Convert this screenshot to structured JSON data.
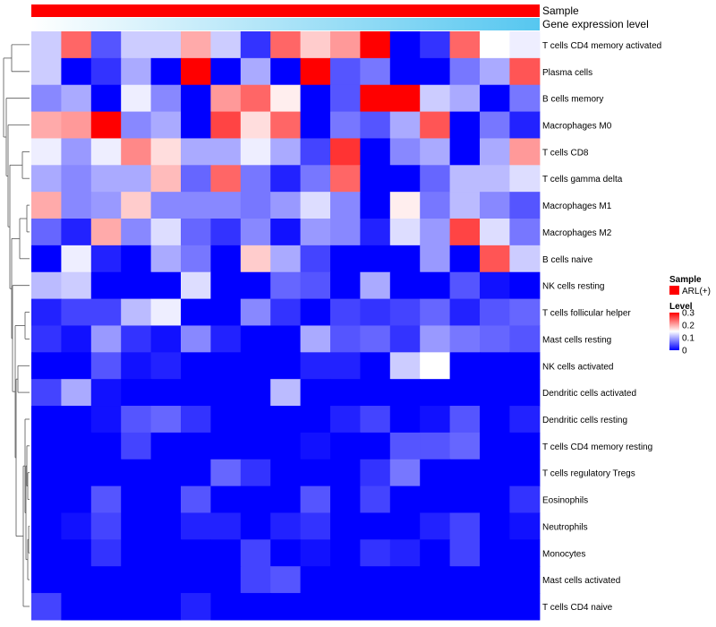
{
  "chart_data": {
    "type": "heatmap",
    "title": "",
    "annotation_rows": [
      {
        "label": "Sample",
        "color": "#ff0000"
      },
      {
        "label": "Gene expression level",
        "gradient": [
          "#ffffff",
          "#56c7f0"
        ]
      }
    ],
    "columns": 17,
    "rows": [
      "T cells CD4 memory activated",
      "Plasma cells",
      "B cells memory",
      "Macrophages M0",
      "T cells CD8",
      "T cells gamma delta",
      "Macrophages M1",
      "Macrophages M2",
      "B cells naive",
      "NK cells resting",
      "T cells follicular helper",
      "Mast cells resting",
      "NK cells activated",
      "Dendritic cells activated",
      "Dendritic cells resting",
      "T cells CD4 memory resting",
      "T cells regulatory  Tregs",
      "Eosinophils",
      "Neutrophils",
      "Monocytes",
      "Mast cells activated",
      "T cells CD4 naive"
    ],
    "values": [
      [
        0.12,
        0.24,
        0.05,
        0.12,
        0.12,
        0.2,
        0.12,
        0.03,
        0.24,
        0.18,
        0.21,
        0.3,
        0.0,
        0.03,
        0.24,
        0.15,
        0.14
      ],
      [
        0.12,
        0.0,
        0.03,
        0.1,
        0.0,
        0.3,
        0.0,
        0.1,
        0.0,
        0.3,
        0.05,
        0.07,
        0.0,
        0.0,
        0.07,
        0.1,
        0.25
      ],
      [
        0.08,
        0.1,
        0.0,
        0.14,
        0.08,
        0.0,
        0.21,
        0.24,
        0.16,
        0.0,
        0.05,
        0.3,
        0.3,
        0.12,
        0.1,
        0.0,
        0.07
      ],
      [
        0.2,
        0.21,
        0.3,
        0.08,
        0.1,
        0.0,
        0.26,
        0.17,
        0.24,
        0.0,
        0.07,
        0.05,
        0.1,
        0.25,
        0.0,
        0.07,
        0.02
      ],
      [
        0.14,
        0.09,
        0.14,
        0.22,
        0.17,
        0.1,
        0.1,
        0.14,
        0.1,
        0.04,
        0.27,
        0.0,
        0.08,
        0.1,
        0.0,
        0.1,
        0.21
      ],
      [
        0.1,
        0.08,
        0.1,
        0.1,
        0.19,
        0.06,
        0.24,
        0.07,
        0.02,
        0.07,
        0.24,
        0.0,
        0.0,
        0.06,
        0.11,
        0.11,
        0.13
      ],
      [
        0.2,
        0.08,
        0.09,
        0.18,
        0.08,
        0.08,
        0.08,
        0.07,
        0.09,
        0.13,
        0.08,
        0.0,
        0.16,
        0.07,
        0.11,
        0.08,
        0.05
      ],
      [
        0.06,
        0.02,
        0.2,
        0.08,
        0.13,
        0.06,
        0.03,
        0.08,
        0.01,
        0.09,
        0.08,
        0.02,
        0.13,
        0.09,
        0.26,
        0.13,
        0.07
      ],
      [
        0.0,
        0.14,
        0.02,
        0.0,
        0.1,
        0.07,
        0.0,
        0.18,
        0.1,
        0.04,
        0.0,
        0.0,
        0.0,
        0.09,
        0.0,
        0.25,
        0.12
      ],
      [
        0.11,
        0.12,
        0.0,
        0.0,
        0.0,
        0.13,
        0.0,
        0.0,
        0.06,
        0.05,
        0.0,
        0.1,
        0.0,
        0.0,
        0.05,
        0.01,
        0.0
      ],
      [
        0.02,
        0.04,
        0.04,
        0.11,
        0.14,
        0.0,
        0.0,
        0.08,
        0.03,
        0.0,
        0.04,
        0.03,
        0.04,
        0.06,
        0.02,
        0.05,
        0.06
      ],
      [
        0.03,
        0.01,
        0.09,
        0.03,
        0.01,
        0.08,
        0.02,
        0.0,
        0.0,
        0.1,
        0.05,
        0.06,
        0.03,
        0.09,
        0.07,
        0.06,
        0.05
      ],
      [
        0.0,
        0.0,
        0.05,
        0.01,
        0.02,
        0.0,
        0.0,
        0.0,
        0.0,
        0.02,
        0.02,
        0.0,
        0.12,
        0.15,
        0.0,
        0.0,
        0.0
      ],
      [
        0.04,
        0.1,
        0.01,
        0.0,
        0.0,
        0.0,
        0.0,
        0.0,
        0.11,
        0.0,
        0.0,
        0.0,
        0.0,
        0.0,
        0.0,
        0.0,
        0.0
      ],
      [
        0.0,
        0.0,
        0.01,
        0.05,
        0.06,
        0.03,
        0.0,
        0.0,
        0.0,
        0.0,
        0.02,
        0.04,
        0.0,
        0.01,
        0.05,
        0.0,
        0.02
      ],
      [
        0.0,
        0.0,
        0.0,
        0.04,
        0.0,
        0.0,
        0.0,
        0.0,
        0.0,
        0.01,
        0.0,
        0.0,
        0.05,
        0.05,
        0.06,
        0.0,
        0.0
      ],
      [
        0.0,
        0.0,
        0.0,
        0.0,
        0.0,
        0.0,
        0.06,
        0.03,
        0.0,
        0.0,
        0.0,
        0.03,
        0.07,
        0.0,
        0.0,
        0.0,
        0.0
      ],
      [
        0.0,
        0.0,
        0.05,
        0.0,
        0.0,
        0.05,
        0.0,
        0.0,
        0.0,
        0.05,
        0.0,
        0.04,
        0.0,
        0.0,
        0.0,
        0.0,
        0.03
      ],
      [
        0.0,
        0.01,
        0.04,
        0.0,
        0.0,
        0.02,
        0.02,
        0.0,
        0.02,
        0.03,
        0.0,
        0.0,
        0.0,
        0.02,
        0.04,
        0.0,
        0.01
      ],
      [
        0.0,
        0.0,
        0.03,
        0.0,
        0.0,
        0.0,
        0.0,
        0.04,
        0.0,
        0.01,
        0.0,
        0.03,
        0.02,
        0.0,
        0.04,
        0.0,
        0.0
      ],
      [
        0.0,
        0.0,
        0.0,
        0.0,
        0.0,
        0.0,
        0.0,
        0.04,
        0.05,
        0.0,
        0.0,
        0.0,
        0.0,
        0.0,
        0.0,
        0.0,
        0.0
      ],
      [
        0.04,
        0.0,
        0.0,
        0.0,
        0.0,
        0.02,
        0.0,
        0.0,
        0.0,
        0.0,
        0.0,
        0.0,
        0.0,
        0.0,
        0.0,
        0.0,
        0.0
      ]
    ],
    "color_scale": {
      "low": "#0000ff",
      "mid": "#ffffff",
      "high": "#ff0000",
      "range": [
        0,
        0.3
      ],
      "mid_value": 0.15
    },
    "legend": {
      "sample_title": "Sample",
      "sample_entry": "ARL(+)",
      "sample_color": "#ff0000",
      "level_title": "Level",
      "level_ticks": [
        "0.3",
        "0.2",
        "0.1",
        "0"
      ],
      "level_tick_values": [
        0.3,
        0.2,
        0.1,
        0
      ]
    }
  }
}
